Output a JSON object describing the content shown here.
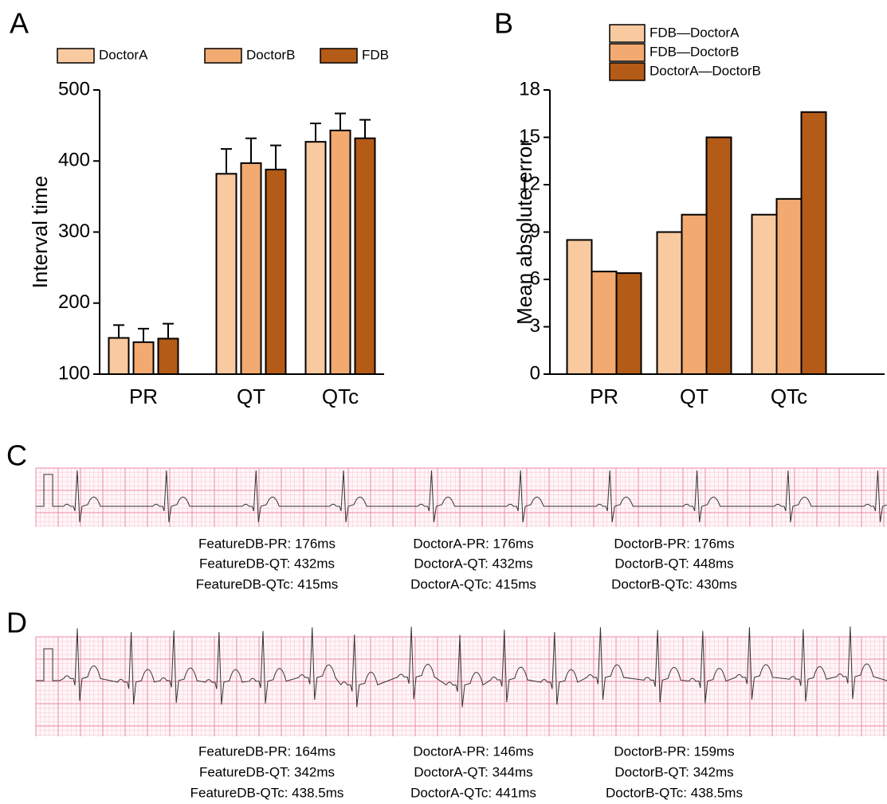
{
  "chart_data": [
    {
      "type": "bar",
      "panel": "A",
      "ylabel": "Interval time",
      "categories": [
        "PR",
        "QT",
        "QTc"
      ],
      "series": [
        {
          "name": "DoctorA",
          "color": "#f9c9a0",
          "values": [
            151,
            382,
            427
          ],
          "errors": [
            18,
            35,
            26
          ]
        },
        {
          "name": "DoctorB",
          "color": "#f2aa70",
          "values": [
            145,
            397,
            443
          ],
          "errors": [
            19,
            35,
            24
          ]
        },
        {
          "name": "FDB",
          "color": "#b35b17",
          "values": [
            150,
            388,
            432
          ],
          "errors": [
            21,
            34,
            26
          ]
        }
      ],
      "ylim": [
        100,
        500
      ],
      "yticks": [
        100,
        200,
        300,
        400,
        500
      ]
    },
    {
      "type": "bar",
      "panel": "B",
      "ylabel": "Mean absolute error",
      "categories": [
        "PR",
        "QT",
        "QTc"
      ],
      "series": [
        {
          "name": "FDB—DoctorA",
          "color": "#f9c9a0",
          "values": [
            8.5,
            9.0,
            10.1
          ]
        },
        {
          "name": "FDB—DoctorB",
          "color": "#f2aa70",
          "values": [
            6.5,
            10.1,
            11.1
          ]
        },
        {
          "name": "DoctorA—DoctorB",
          "color": "#b35b17",
          "values": [
            6.4,
            15.0,
            16.6
          ]
        }
      ],
      "ylim": [
        0,
        18
      ],
      "yticks": [
        0,
        3,
        6,
        9,
        12,
        15,
        18
      ]
    }
  ],
  "ecg_panels": [
    {
      "label": "C",
      "rows": [
        [
          "FeatureDB-PR: 176ms",
          "DoctorA-PR: 176ms",
          "DoctorB-PR: 176ms"
        ],
        [
          "FeatureDB-QT: 432ms",
          "DoctorA-QT: 432ms",
          "DoctorB-QT: 448ms"
        ],
        [
          "FeatureDB-QTc: 415ms",
          "DoctorA-QTc: 415ms",
          "DoctorB-QTc: 430ms"
        ]
      ]
    },
    {
      "label": "D",
      "rows": [
        [
          "FeatureDB-PR: 164ms",
          "DoctorA-PR: 146ms",
          "DoctorB-PR: 159ms"
        ],
        [
          "FeatureDB-QT: 342ms",
          "DoctorA-QT: 344ms",
          "DoctorB-QT: 342ms"
        ],
        [
          "FeatureDB-QTc: 438.5ms",
          "DoctorA-QTc: 441ms",
          "DoctorB-QTc: 438.5ms"
        ]
      ]
    }
  ]
}
